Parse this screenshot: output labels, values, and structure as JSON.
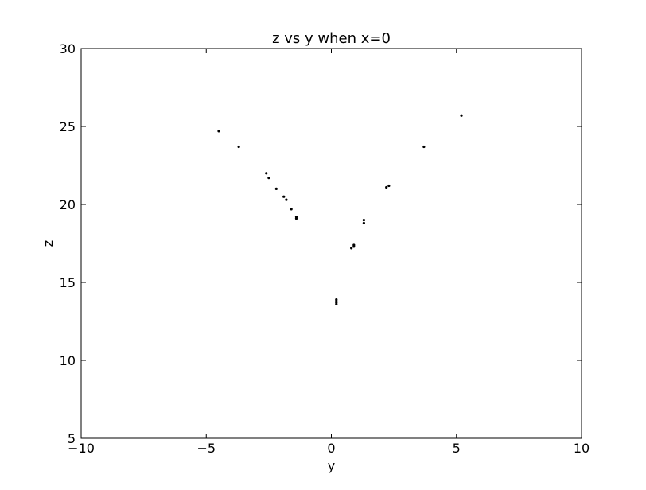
{
  "chart_data": {
    "type": "scatter",
    "title": "z vs y when x=0",
    "xlabel": "y",
    "ylabel": "z",
    "xlim": [
      -10,
      10
    ],
    "ylim": [
      5,
      30
    ],
    "xticks": [
      -10,
      -5,
      0,
      5,
      10
    ],
    "xtick_labels": [
      "−10",
      "−5",
      "0",
      "5",
      "10"
    ],
    "yticks": [
      5,
      10,
      15,
      20,
      25,
      30
    ],
    "ytick_labels": [
      "5",
      "10",
      "15",
      "20",
      "25",
      "30"
    ],
    "grid": false,
    "legend": false,
    "marker_color": "#000000",
    "series": [
      {
        "points": [
          {
            "x": -4.5,
            "y": 24.7
          },
          {
            "x": -3.7,
            "y": 23.7
          },
          {
            "x": -2.6,
            "y": 22.0
          },
          {
            "x": -2.5,
            "y": 21.7
          },
          {
            "x": -2.2,
            "y": 21.0
          },
          {
            "x": -1.9,
            "y": 20.5
          },
          {
            "x": -1.8,
            "y": 20.3
          },
          {
            "x": -1.6,
            "y": 19.7
          },
          {
            "x": -1.4,
            "y": 19.2
          },
          {
            "x": -1.4,
            "y": 19.1
          },
          {
            "x": 0.2,
            "y": 13.9
          },
          {
            "x": 0.2,
            "y": 13.8
          },
          {
            "x": 0.2,
            "y": 13.7
          },
          {
            "x": 0.2,
            "y": 13.6
          },
          {
            "x": 0.8,
            "y": 17.2
          },
          {
            "x": 0.9,
            "y": 17.3
          },
          {
            "x": 0.9,
            "y": 17.4
          },
          {
            "x": 1.3,
            "y": 18.8
          },
          {
            "x": 1.3,
            "y": 19.0
          },
          {
            "x": 2.2,
            "y": 21.1
          },
          {
            "x": 2.3,
            "y": 21.2
          },
          {
            "x": 3.7,
            "y": 23.7
          },
          {
            "x": 5.2,
            "y": 25.7
          }
        ]
      }
    ]
  }
}
